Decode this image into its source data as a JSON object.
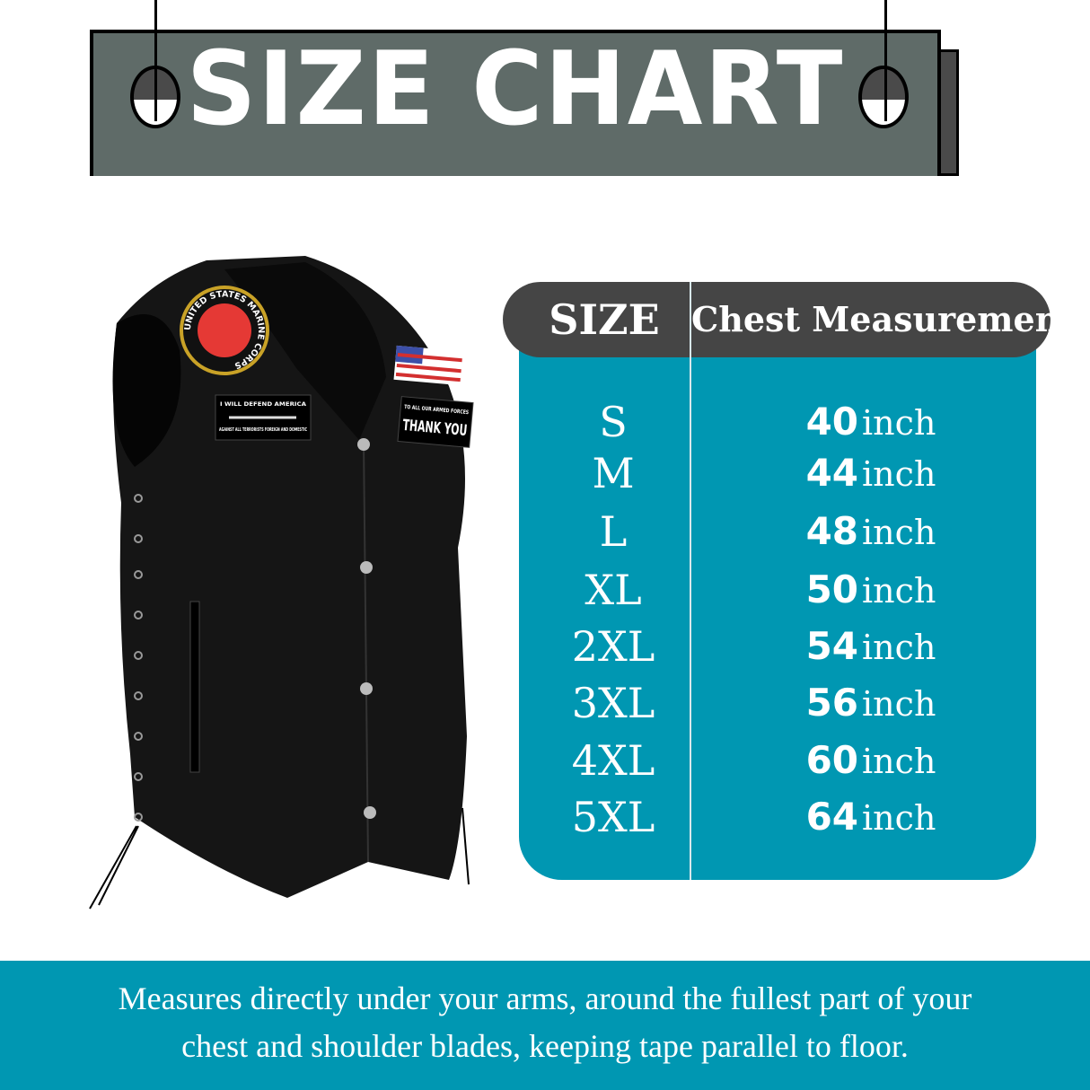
{
  "banner": {
    "title": "SIZE CHART"
  },
  "colors": {
    "teal": "#0097b2",
    "header": "#454545",
    "banner": "#5f6b68"
  },
  "product_image": {
    "icon": "leather-vest",
    "patch_lettering": [
      "UNITED STATES MARINE CORPS",
      "I WILL DEFEND AMERICA",
      "AGAINST ALL TERRORISTS FOREIGN AND DOMESTIC",
      "TO ALL OUR ARMED FORCES",
      "THANK YOU"
    ]
  },
  "table": {
    "headers": {
      "size": "SIZE",
      "chest": "Chest Measurement"
    },
    "rows": [
      {
        "size": "S",
        "value": "40",
        "unit": "inch"
      },
      {
        "size": "M",
        "value": "44",
        "unit": "inch"
      },
      {
        "size": "L",
        "value": "48",
        "unit": "inch"
      },
      {
        "size": "XL",
        "value": "50",
        "unit": "inch"
      },
      {
        "size": "2XL",
        "value": "54",
        "unit": "inch"
      },
      {
        "size": "3XL",
        "value": "56",
        "unit": "inch"
      },
      {
        "size": "4XL",
        "value": "60",
        "unit": "inch"
      },
      {
        "size": "5XL",
        "value": "64",
        "unit": "inch"
      }
    ]
  },
  "footer": {
    "line1": "Measures directly under your arms, around the fullest part of your",
    "line2": "chest and shoulder blades, keeping tape parallel to floor."
  }
}
